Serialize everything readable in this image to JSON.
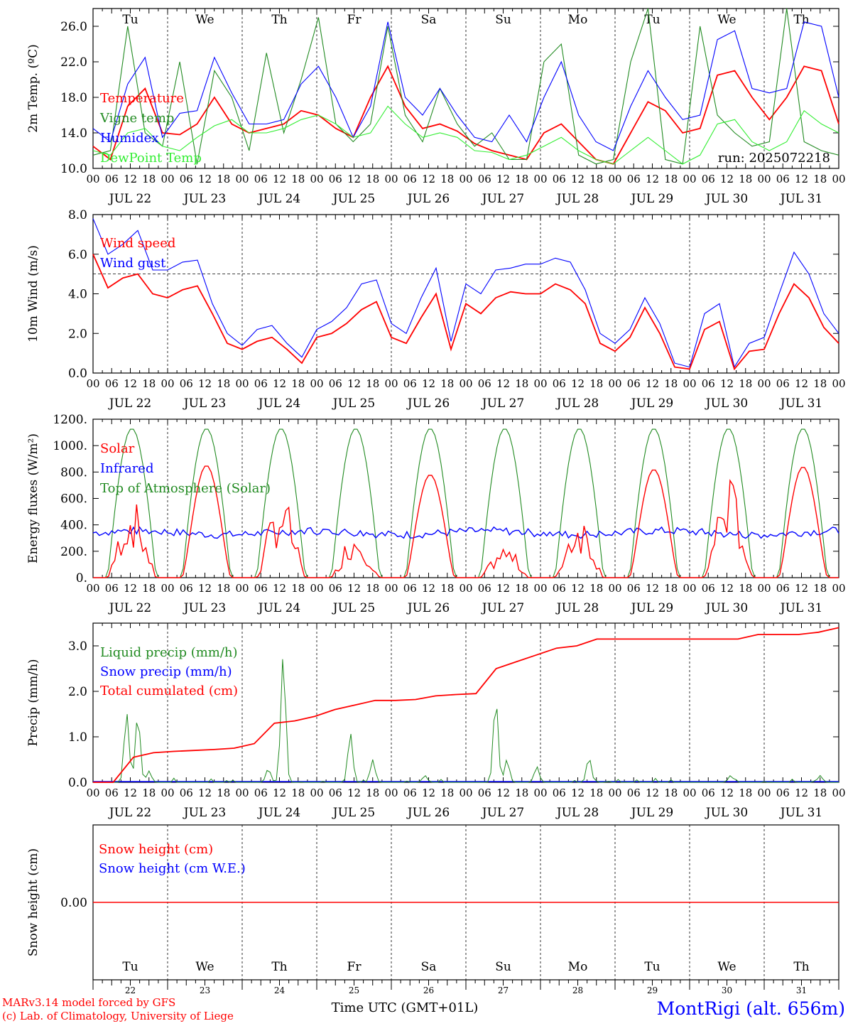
{
  "days": [
    {
      "dow": "Tu",
      "date": "JUL 22",
      "num": "22",
      "weekend": false
    },
    {
      "dow": "We",
      "date": "JUL 23",
      "num": "23",
      "weekend": false
    },
    {
      "dow": "Th",
      "date": "JUL 24",
      "num": "24",
      "weekend": false
    },
    {
      "dow": "Fr",
      "date": "JUL 25",
      "num": "25",
      "weekend": false
    },
    {
      "dow": "Sa",
      "date": "JUL 26",
      "num": "26",
      "weekend": true
    },
    {
      "dow": "Su",
      "date": "JUL 27",
      "num": "27",
      "weekend": true
    },
    {
      "dow": "Mo",
      "date": "JUL 28",
      "num": "28",
      "weekend": false
    },
    {
      "dow": "Tu",
      "date": "JUL 29",
      "num": "29",
      "weekend": false
    },
    {
      "dow": "We",
      "date": "JUL 30",
      "num": "30",
      "weekend": false
    },
    {
      "dow": "Th",
      "date": "JUL 31",
      "num": "31",
      "weekend": false
    }
  ],
  "hour_labels": [
    "00",
    "06",
    "12",
    "18"
  ],
  "end_hour_label": "00",
  "colors": {
    "red": "#ff0000",
    "green": "#228b22",
    "blue": "#0000ff",
    "lightgreen": "#33ee33",
    "weekend": "#ff0000"
  },
  "footer": {
    "model": "MARv3.14 model forced by GFS",
    "lab": "(c) Lab. of Climatology, University of Liege",
    "xlabel": "Time UTC (GMT+01L)",
    "station": "MontRigi (alt. 656m)"
  },
  "chart_data": [
    {
      "type": "line",
      "ylabel": "2m Temp. (ºC)",
      "ylim": [
        10,
        28
      ],
      "yticks": [
        "10.0",
        "14.0",
        "18.0",
        "22.0",
        "26.0"
      ],
      "ytick_values": [
        10,
        14,
        18,
        22,
        26
      ],
      "annotation": "run: 2025072218",
      "series": [
        {
          "name": "Temperature",
          "color": "red",
          "values": [
            12.5,
            11,
            17,
            19,
            14,
            13.8,
            15,
            18,
            15,
            14,
            14.5,
            15,
            16.5,
            16,
            14.5,
            13.5,
            18,
            21.5,
            17,
            14.5,
            15,
            14.2,
            12.8,
            12,
            11.5,
            11,
            14,
            15,
            13,
            11,
            10.5,
            14,
            17.5,
            16.5,
            14,
            14.5,
            20.5,
            21,
            18,
            15.5,
            18,
            21.5,
            21,
            15
          ]
        },
        {
          "name": "Vigne temp",
          "color": "green",
          "values": [
            11.5,
            12,
            26,
            14,
            12.5,
            22,
            10.5,
            21,
            18,
            12,
            23,
            14,
            20,
            27,
            15,
            13,
            15,
            26,
            16,
            13,
            19,
            15,
            12.5,
            14,
            11,
            11,
            22,
            24,
            11.5,
            10.5,
            11,
            22,
            28,
            11,
            10.5,
            26,
            16,
            14,
            12.5,
            13,
            28,
            13,
            12,
            11.5
          ]
        },
        {
          "name": "Humidex",
          "color": "blue",
          "values": [
            14.5,
            13,
            19.5,
            22.5,
            13.5,
            16.2,
            16.5,
            22.5,
            18.5,
            15,
            15,
            15.5,
            19.5,
            21.5,
            18,
            13.5,
            17,
            26.5,
            18,
            16,
            19,
            16,
            13.5,
            13,
            16,
            13,
            18,
            22,
            16,
            13,
            12,
            17,
            21,
            18,
            15.5,
            16,
            24.5,
            25.5,
            19,
            18.5,
            19,
            26.5,
            26,
            18
          ]
        },
        {
          "name": "DewPoint Temp",
          "color": "lightgreen",
          "values": [
            12,
            11.5,
            14,
            14.5,
            12.5,
            12,
            13.5,
            14.8,
            15.5,
            14,
            14,
            14.5,
            15.5,
            16,
            15,
            13.5,
            14,
            17,
            15,
            13.5,
            14,
            13.5,
            12,
            11.8,
            11,
            11.5,
            12.5,
            13.5,
            12,
            11,
            10.5,
            12,
            13.5,
            12,
            10.5,
            11.5,
            15,
            15.5,
            13,
            12,
            13,
            16.5,
            15,
            14
          ]
        }
      ]
    },
    {
      "type": "line",
      "ylabel": "10m Wind (m/s)",
      "ylim": [
        0,
        8
      ],
      "yticks": [
        "0.0",
        "2.0",
        "4.0",
        "6.0",
        "8.0"
      ],
      "ytick_values": [
        0,
        2,
        4,
        6,
        8
      ],
      "reference_line": 5,
      "series": [
        {
          "name": "Wind speed",
          "color": "red",
          "values": [
            6,
            4.3,
            4.8,
            5,
            4,
            3.8,
            4.2,
            4.4,
            3,
            1.5,
            1.2,
            1.6,
            1.8,
            1.2,
            0.5,
            1.8,
            2,
            2.5,
            3.2,
            3.6,
            1.8,
            1.5,
            2.8,
            4,
            1.2,
            3.5,
            3,
            3.8,
            4.1,
            4,
            4,
            4.5,
            4.2,
            3.5,
            1.5,
            1.1,
            1.8,
            3.3,
            2,
            0.3,
            0.2,
            2.2,
            2.6,
            0.2,
            1.1,
            1.2,
            3,
            4.5,
            3.8,
            2.3,
            1.5
          ]
        },
        {
          "name": "Wind gust",
          "color": "blue",
          "values": [
            7.8,
            6,
            6.5,
            7.2,
            5.2,
            5.2,
            5.6,
            5.7,
            3.5,
            2,
            1.4,
            2.2,
            2.4,
            1.5,
            0.8,
            2.2,
            2.6,
            3.3,
            4.5,
            4.7,
            2.5,
            2,
            3.8,
            5.3,
            1.6,
            4.5,
            4,
            5.2,
            5.3,
            5.5,
            5.5,
            5.8,
            5.6,
            4.2,
            2,
            1.5,
            2.2,
            3.8,
            2.5,
            0.5,
            0.3,
            3,
            3.5,
            0.3,
            1.5,
            1.8,
            4,
            6.1,
            5,
            3,
            2
          ]
        }
      ]
    },
    {
      "type": "line",
      "ylabel": "Energy fluxes (W/m²)",
      "ylim": [
        0,
        1200
      ],
      "yticks": [
        "0.",
        "200.",
        "400.",
        "600.",
        "800.",
        "1000.",
        "1200."
      ],
      "ytick_values": [
        0,
        200,
        400,
        600,
        800,
        1000,
        1200
      ],
      "toa_peak": 1130,
      "series": [
        {
          "name": "Solar",
          "color": "red",
          "peaks": [
            600,
            850,
            650,
            380,
            780,
            250,
            500,
            820,
            780,
            840
          ],
          "varies": [
            1,
            0,
            1,
            1,
            0,
            1,
            1,
            0,
            1,
            0
          ]
        },
        {
          "name": "Infrared",
          "color": "blue",
          "mean": 340
        },
        {
          "name": "Top of Atmosphere (Solar)",
          "color": "green"
        }
      ]
    },
    {
      "type": "line",
      "ylabel": "Precip (mm/h)",
      "ylim": [
        0,
        3.5
      ],
      "yticks": [
        "0.0",
        "1.0",
        "2.0",
        "3.0"
      ],
      "ytick_values": [
        0,
        1,
        2,
        3
      ],
      "series": [
        {
          "name": "Liquid precip (mm/h)",
          "color": "green",
          "spikes": [
            [
              0.45,
              1.55
            ],
            [
              0.6,
              1.5
            ],
            [
              0.75,
              0.25
            ],
            [
              2.55,
              2.8
            ],
            [
              2.35,
              0.3
            ],
            [
              3.45,
              1.1
            ],
            [
              3.75,
              0.5
            ],
            [
              4.45,
              0.15
            ],
            [
              5.4,
              1.85
            ],
            [
              5.55,
              0.5
            ],
            [
              5.95,
              0.35
            ],
            [
              6.65,
              0.55
            ],
            [
              8.55,
              0.15
            ],
            [
              9.75,
              0.15
            ]
          ]
        },
        {
          "name": "Snow precip (mm/h)",
          "color": "blue",
          "values": []
        },
        {
          "name": "Total cumulated (cm)",
          "color": "red",
          "values": [
            0,
            0,
            0.55,
            0.65,
            0.68,
            0.7,
            0.72,
            0.75,
            0.85,
            1.3,
            1.35,
            1.45,
            1.6,
            1.7,
            1.8,
            1.8,
            1.82,
            1.9,
            1.93,
            1.95,
            2.5,
            2.65,
            2.8,
            2.95,
            3,
            3.15,
            3.15,
            3.15,
            3.15,
            3.15,
            3.15,
            3.15,
            3.15,
            3.25,
            3.25,
            3.25,
            3.3,
            3.4
          ]
        }
      ]
    },
    {
      "type": "line",
      "ylabel": "Snow height (cm)",
      "ylim": [
        -1,
        1
      ],
      "yticks": [
        "0.00"
      ],
      "ytick_values": [
        0
      ],
      "series": [
        {
          "name": "Snow height (cm)",
          "color": "red",
          "values": [
            0,
            0
          ]
        },
        {
          "name": "Snow height (cm W.E.)",
          "color": "blue",
          "values": [
            0,
            0
          ]
        }
      ]
    }
  ]
}
